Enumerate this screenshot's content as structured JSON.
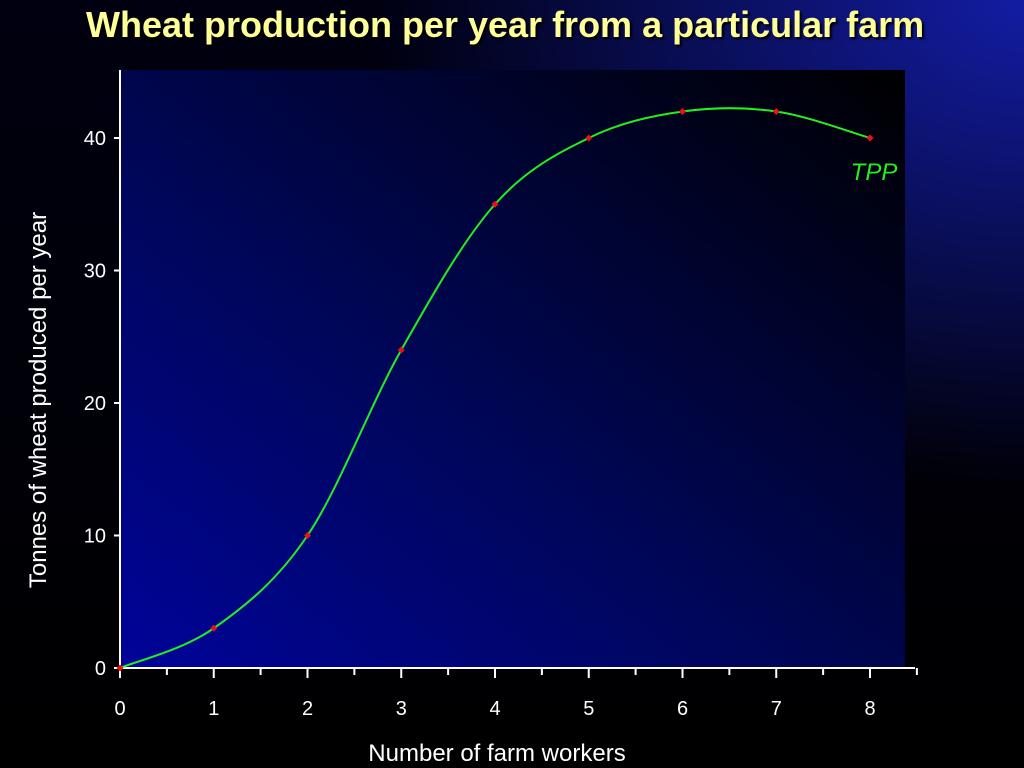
{
  "page": {
    "title": "Wheat production per year from a particular farm"
  },
  "colors": {
    "title": "#ffff99",
    "curve": "#22ee22",
    "marker": "#ee1111",
    "axis": "#ffffff",
    "text": "#ffffff"
  },
  "chart_data": {
    "type": "line",
    "title": "Wheat production per year from a particular farm",
    "xlabel": "Number of farm workers",
    "ylabel": "Tonnes of wheat produced per year",
    "x": [
      0,
      1,
      2,
      3,
      4,
      5,
      6,
      7,
      8
    ],
    "xlim": [
      0,
      8.5
    ],
    "ylim": [
      0,
      45
    ],
    "xticks": [
      0,
      1,
      2,
      3,
      4,
      5,
      6,
      7,
      8
    ],
    "yticks": [
      0,
      10,
      20,
      30,
      40
    ],
    "grid": false,
    "legend": "none",
    "series": [
      {
        "name": "TPP",
        "values": [
          0,
          3,
          10,
          24,
          35,
          40,
          42,
          42,
          40
        ]
      }
    ]
  }
}
